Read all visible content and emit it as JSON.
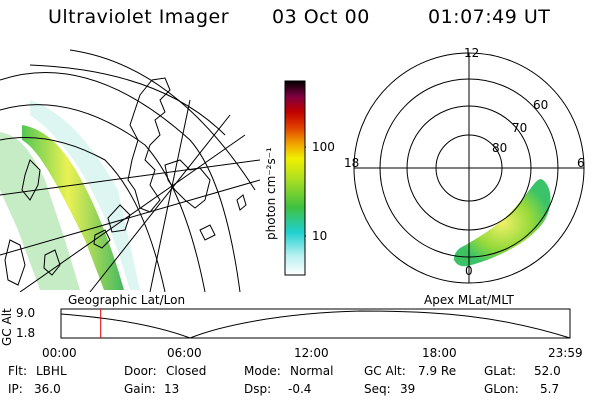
{
  "header": {
    "title": "Ultraviolet Imager",
    "date": "03 Oct 00",
    "time": "01:07:49 UT"
  },
  "colorbar": {
    "unit_label": "photon cm⁻²s⁻¹",
    "ticks": [
      "100",
      "10"
    ]
  },
  "left_panel": {
    "label": "Geographic Lat/Lon"
  },
  "right_panel": {
    "label": "Apex MLat/MLT",
    "mlt_labels": {
      "top": "12",
      "left": "18",
      "right": "6",
      "bottom": "0"
    },
    "lat_labels": [
      "60",
      "70",
      "80"
    ]
  },
  "timeline": {
    "ylabel": "GC Alt",
    "yticks": [
      "9.0",
      "1.8"
    ],
    "xticks": [
      "00:00",
      "06:00",
      "12:00",
      "18:00",
      "23:59"
    ],
    "marker_fraction": 0.078
  },
  "status": {
    "row1": [
      {
        "label": "Flt:",
        "value": "LBHL"
      },
      {
        "label": "Door:",
        "value": "Closed"
      },
      {
        "label": "Mode:",
        "value": "Normal"
      },
      {
        "label": "GC Alt:",
        "value": "7.9 Re"
      },
      {
        "label": "GLat:",
        "value": "52.0"
      }
    ],
    "row2": [
      {
        "label": "IP:",
        "value": "36.0"
      },
      {
        "label": "Gain:",
        "value": "13"
      },
      {
        "label": "Dsp:",
        "value": "-0.4"
      },
      {
        "label": "Seq:",
        "value": "39"
      },
      {
        "label": "GLon:",
        "value": "5.7"
      }
    ]
  },
  "colors": {
    "accent_marker": "#e00000",
    "aurora_scale": [
      "#ffffff",
      "#b8f0f0",
      "#20d0d0",
      "#40c040",
      "#a0e020",
      "#f0f000",
      "#f0a000",
      "#e04000",
      "#c00000",
      "#800040",
      "#000000"
    ]
  }
}
